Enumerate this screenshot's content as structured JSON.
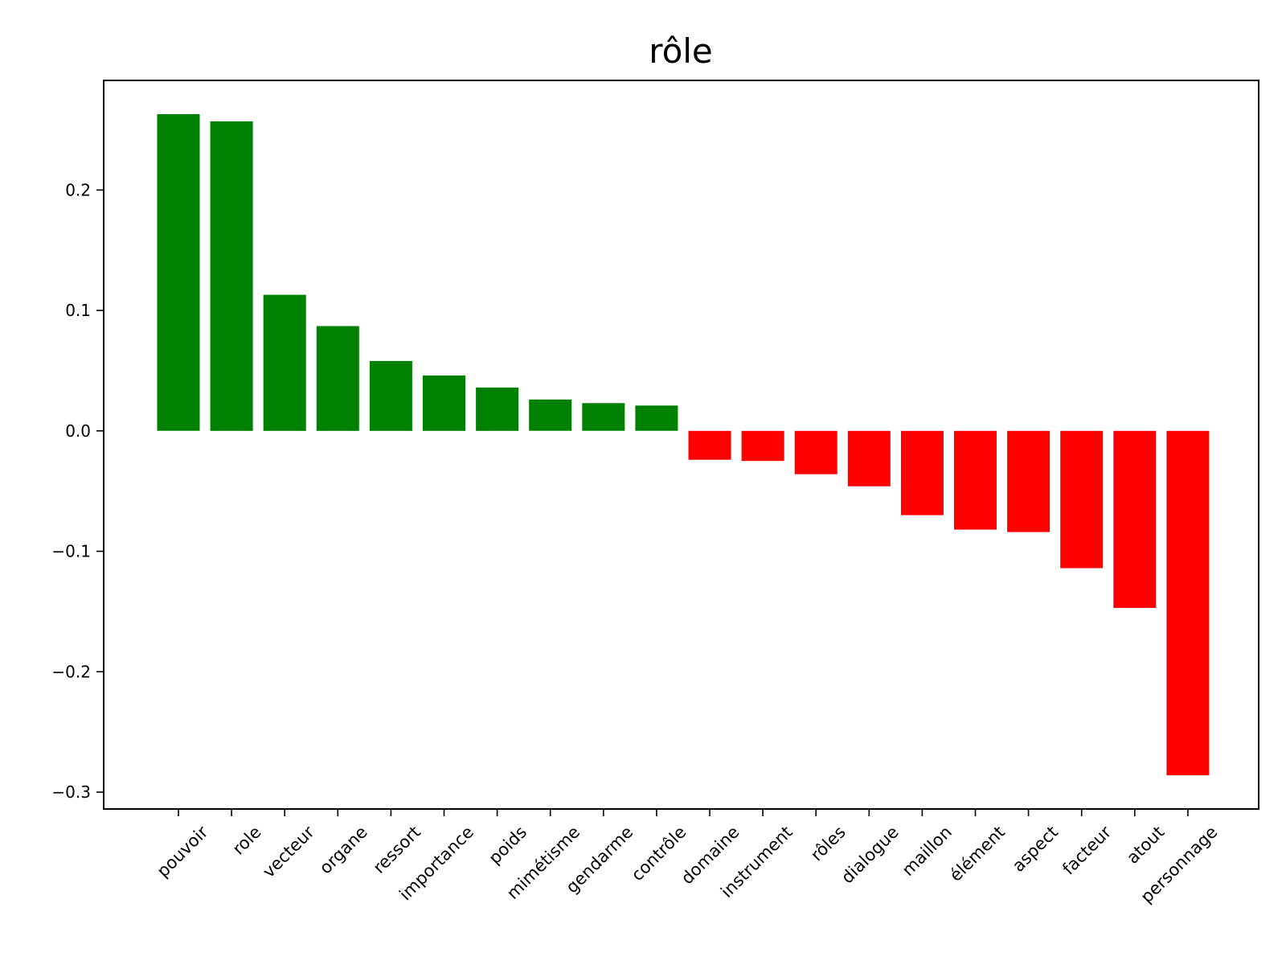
{
  "chart_data": {
    "type": "bar",
    "title": "rôle",
    "xlabel": "",
    "ylabel": "",
    "categories": [
      "pouvoir",
      "role",
      "vecteur",
      "organe",
      "ressort",
      "importance",
      "poids",
      "mimétisme",
      "gendarme",
      "contrôle",
      "domaine",
      "instrument",
      "rôles",
      "dialogue",
      "maillon",
      "élément",
      "aspect",
      "facteur",
      "atout",
      "personnage"
    ],
    "values": [
      0.263,
      0.257,
      0.113,
      0.087,
      0.058,
      0.046,
      0.036,
      0.026,
      0.023,
      0.021,
      -0.024,
      -0.025,
      -0.036,
      -0.046,
      -0.07,
      -0.082,
      -0.084,
      -0.114,
      -0.147,
      -0.286
    ],
    "colors": {
      "positive": "#008000",
      "negative": "#ff0000"
    },
    "ylim": [
      -0.314,
      0.291
    ],
    "yticks": [
      0.2,
      0.1,
      0.0,
      -0.1,
      -0.2,
      -0.3
    ],
    "ytick_labels": [
      "0.2",
      "0.1",
      "0.0",
      "−0.1",
      "−0.2",
      "−0.3"
    ],
    "grid": false,
    "legend": "none"
  }
}
